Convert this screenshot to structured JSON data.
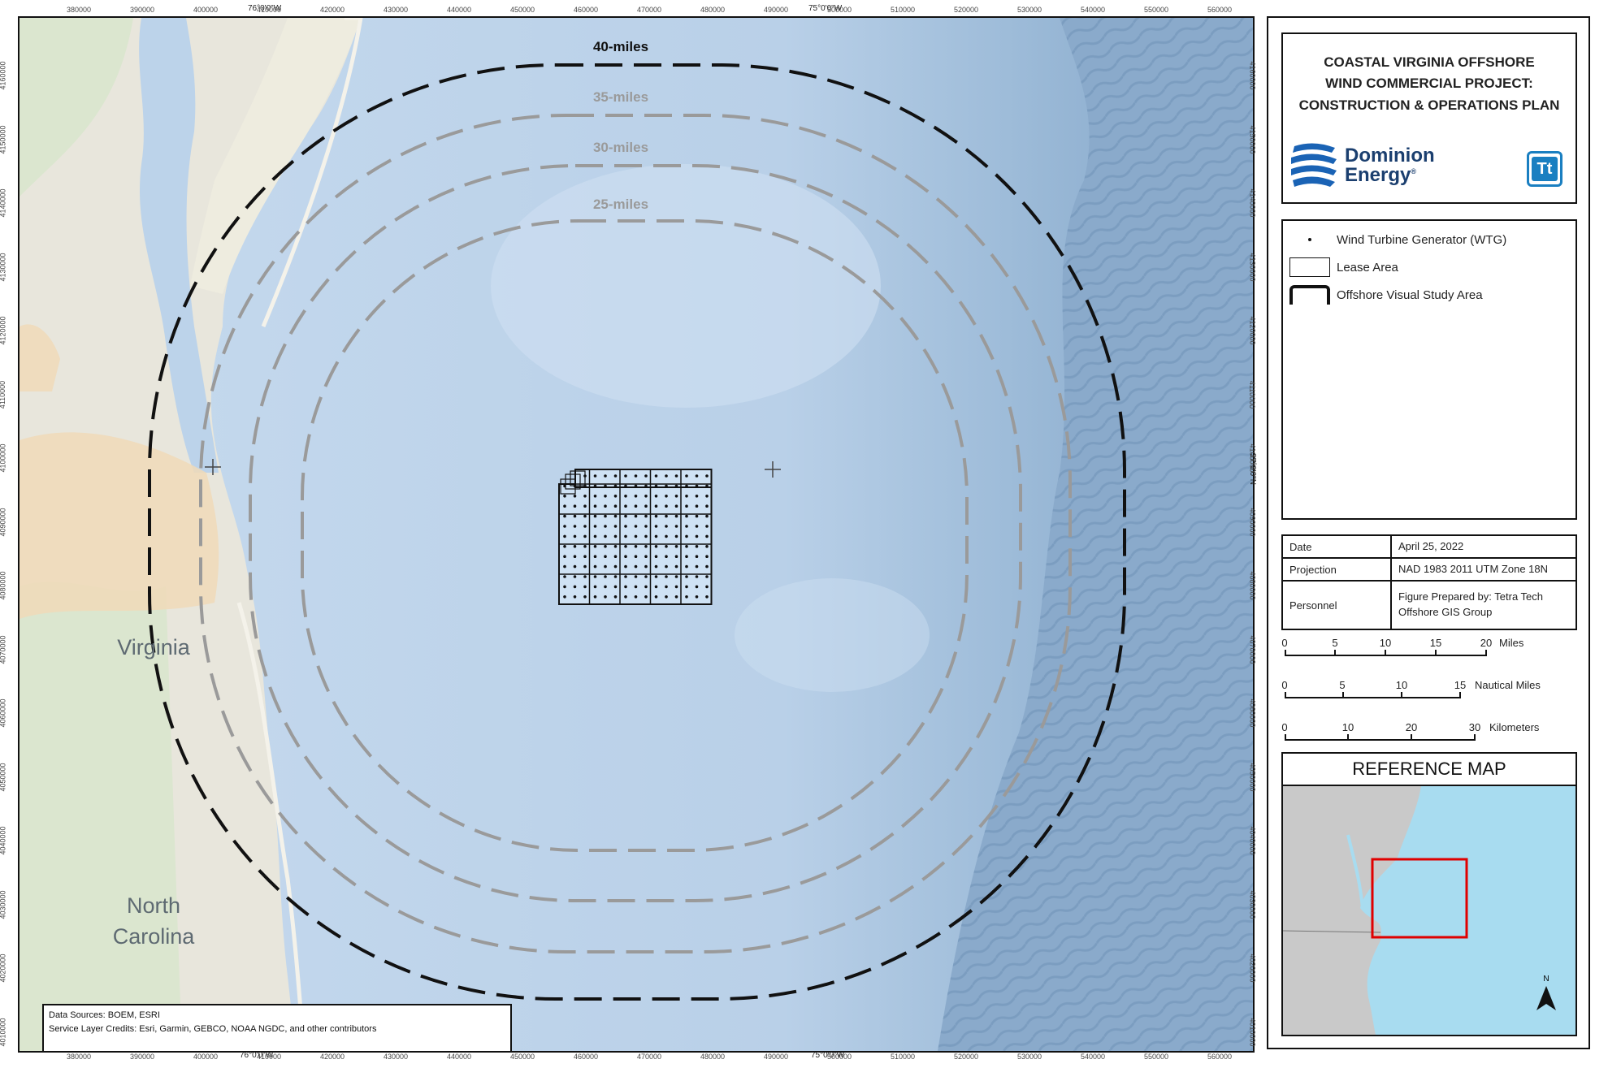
{
  "map": {
    "top_coords": [
      "76°0'0\"W",
      "75°0'0\"W"
    ],
    "bottom_coords": [
      "76°0'0\"W",
      "75°0'0\"W"
    ],
    "side_coord": "37°0'0\"N",
    "easting_ticks": [
      "380000",
      "390000",
      "400000",
      "410000",
      "420000",
      "430000",
      "440000",
      "450000",
      "460000",
      "470000",
      "480000",
      "490000",
      "500000",
      "510000",
      "520000",
      "530000",
      "540000",
      "550000",
      "560000"
    ],
    "northing_ticks": [
      "4160000",
      "4150000",
      "4140000",
      "4130000",
      "4120000",
      "4110000",
      "4100000",
      "4090000",
      "4080000",
      "4070000",
      "4060000",
      "4050000",
      "4040000",
      "4030000",
      "4020000",
      "4010000"
    ],
    "rings": [
      {
        "label": "40-miles",
        "color": "#111111"
      },
      {
        "label": "35-miles",
        "color": "#9a9a9a"
      },
      {
        "label": "30-miles",
        "color": "#9a9a9a"
      },
      {
        "label": "25-miles",
        "color": "#9a9a9a"
      }
    ],
    "places": {
      "virginia": "Virginia",
      "north_carolina_1": "North",
      "north_carolina_2": "Carolina"
    },
    "colors": {
      "ocean": "#bcd3ea",
      "deep_ocean": "#8fb0d0",
      "land": "#eae8e0",
      "urban": "#f0d9b8",
      "forest": "#d4e4c8"
    },
    "credits": {
      "line1": "Data Sources: BOEM, ESRI",
      "line2": "Service Layer Credits: Esri, Garmin, GEBCO, NOAA NGDC, and other contributors"
    }
  },
  "title": {
    "line1": "COASTAL VIRGINIA OFFSHORE",
    "line2": "WIND COMMERCIAL PROJECT:",
    "line3": "CONSTRUCTION & OPERATIONS PLAN",
    "company_1": "Dominion",
    "company_2": "Energy",
    "company_mark": "®",
    "partner_logo": "Tt",
    "brand_color": "#1a63b5"
  },
  "legend": {
    "items": [
      {
        "label": "Wind Turbine Generator (WTG)",
        "icon": "dot-icon"
      },
      {
        "label": "Lease Area",
        "icon": "rectangle-icon"
      },
      {
        "label": "Offshore Visual Study Area",
        "icon": "thick-bracket-icon"
      }
    ]
  },
  "meta": {
    "date_key": "Date",
    "date_val": "April 25, 2022",
    "projection_key": "Projection",
    "projection_val": "NAD 1983 2011 UTM Zone 18N",
    "personnel_key": "Personnel",
    "personnel_val_1": "Figure Prepared by: Tetra Tech",
    "personnel_val_2": "Offshore GIS Group"
  },
  "scales": [
    {
      "ticks": [
        "0",
        "5",
        "10",
        "15",
        "20"
      ],
      "unit": "Miles"
    },
    {
      "ticks": [
        "0",
        "5",
        "10",
        "15"
      ],
      "unit": "Nautical Miles"
    },
    {
      "ticks": [
        "0",
        "10",
        "20",
        "30"
      ],
      "unit": "Kilometers"
    }
  ],
  "reference_map": {
    "title": "REFERENCE MAP",
    "north_label": "N",
    "highlight_color": "#e00000"
  }
}
